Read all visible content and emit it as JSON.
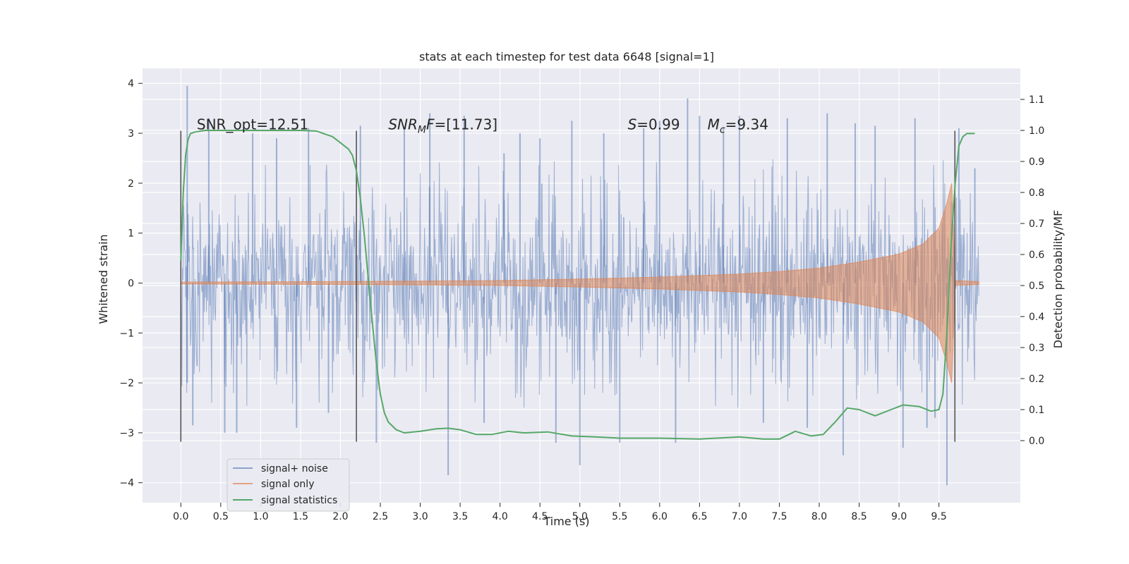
{
  "chart_data": {
    "type": "line",
    "title": "stats at each timestep for test data 6648 [signal=1]",
    "xlabel": "Time (s)",
    "ylabel": "Whitened strain",
    "ylabel_right": "Detection probability/MF",
    "xlim": [
      -0.48,
      10.52
    ],
    "ylim": [
      -4.4,
      4.3
    ],
    "ylim_right": [
      -0.2,
      1.2
    ],
    "x_ticks": [
      0.0,
      0.5,
      1.0,
      1.5,
      2.0,
      2.5,
      3.0,
      3.5,
      4.0,
      4.5,
      5.0,
      5.5,
      6.0,
      6.5,
      7.0,
      7.5,
      8.0,
      8.5,
      9.0,
      9.5
    ],
    "x_tick_labels": [
      "0.0",
      "0.5",
      "1.0",
      "1.5",
      "2.0",
      "2.5",
      "3.0",
      "3.5",
      "4.0",
      "4.5",
      "5.0",
      "5.5",
      "6.0",
      "6.5",
      "7.0",
      "7.5",
      "8.0",
      "8.5",
      "9.0",
      "9.5"
    ],
    "y_ticks": [
      -4,
      -3,
      -2,
      -1,
      0,
      1,
      2,
      3,
      4
    ],
    "y_tick_labels": [
      "−4",
      "−3",
      "−2",
      "−1",
      "0",
      "1",
      "2",
      "3",
      "4"
    ],
    "y_right_ticks": [
      0.0,
      0.1,
      0.2,
      0.3,
      0.4,
      0.5,
      0.6,
      0.7,
      0.8,
      0.9,
      1.0,
      1.1
    ],
    "y_right_tick_labels": [
      "0.0",
      "0.1",
      "0.2",
      "0.3",
      "0.4",
      "0.5",
      "0.6",
      "0.7",
      "0.8",
      "0.9",
      "1.0",
      "1.1"
    ],
    "grid": true,
    "legend_position": "lower-left",
    "colors": {
      "noise": "#4c72b0",
      "signal": "#dd8452",
      "stats": "#55a868",
      "vline": "#555555",
      "background": "#eaeaf2",
      "grid": "#ffffff"
    },
    "series": [
      {
        "name": "signal+ noise",
        "axis": "left",
        "x_range": [
          0.0,
          10.0
        ],
        "typical_band": [
          -1.5,
          1.3
        ],
        "spikes": [
          [
            0.08,
            3.95
          ],
          [
            0.08,
            -2.0
          ],
          [
            0.15,
            -2.85
          ],
          [
            0.35,
            3.3
          ],
          [
            0.55,
            -3.0
          ],
          [
            0.7,
            -3.0
          ],
          [
            0.9,
            3.0
          ],
          [
            1.2,
            2.9
          ],
          [
            1.45,
            -2.9
          ],
          [
            1.6,
            3.1
          ],
          [
            1.85,
            -2.6
          ],
          [
            2.25,
            3.15
          ],
          [
            2.45,
            -3.2
          ],
          [
            2.8,
            3.1
          ],
          [
            3.12,
            3.4
          ],
          [
            3.35,
            -3.85
          ],
          [
            3.55,
            3.35
          ],
          [
            3.8,
            -2.8
          ],
          [
            4.05,
            2.6
          ],
          [
            4.25,
            3.0
          ],
          [
            4.5,
            2.9
          ],
          [
            4.7,
            -3.2
          ],
          [
            4.9,
            3.25
          ],
          [
            5.0,
            -3.65
          ],
          [
            5.3,
            3.0
          ],
          [
            5.5,
            -3.2
          ],
          [
            5.8,
            3.1
          ],
          [
            6.0,
            3.25
          ],
          [
            6.2,
            -3.2
          ],
          [
            6.35,
            3.7
          ],
          [
            6.5,
            3.35
          ],
          [
            6.8,
            3.1
          ],
          [
            7.0,
            3.35
          ],
          [
            7.3,
            -2.8
          ],
          [
            7.6,
            3.3
          ],
          [
            7.85,
            -2.9
          ],
          [
            8.1,
            3.4
          ],
          [
            8.3,
            -3.45
          ],
          [
            8.45,
            3.2
          ],
          [
            8.7,
            3.15
          ],
          [
            9.05,
            -3.3
          ],
          [
            9.2,
            3.3
          ],
          [
            9.35,
            -2.9
          ],
          [
            9.45,
            -2.7
          ],
          [
            9.6,
            -4.05
          ],
          [
            9.75,
            3.1
          ],
          [
            9.95,
            2.3
          ]
        ]
      },
      {
        "name": "signal only",
        "axis": "left",
        "envelope": [
          [
            0.0,
            0.02
          ],
          [
            2.0,
            0.03
          ],
          [
            4.0,
            0.05
          ],
          [
            5.0,
            0.08
          ],
          [
            6.0,
            0.12
          ],
          [
            7.0,
            0.18
          ],
          [
            7.5,
            0.23
          ],
          [
            8.0,
            0.3
          ],
          [
            8.5,
            0.42
          ],
          [
            9.0,
            0.58
          ],
          [
            9.3,
            0.78
          ],
          [
            9.5,
            1.1
          ],
          [
            9.6,
            1.6
          ],
          [
            9.66,
            2.0
          ],
          [
            9.68,
            1.2
          ],
          [
            9.7,
            0.05
          ],
          [
            10.0,
            0.03
          ]
        ]
      },
      {
        "name": "signal statistics",
        "axis": "right",
        "x": [
          0.0,
          0.03,
          0.06,
          0.09,
          0.12,
          0.18,
          0.3,
          0.5,
          1.0,
          1.5,
          1.7,
          1.9,
          2.0,
          2.1,
          2.15,
          2.2,
          2.25,
          2.3,
          2.35,
          2.4,
          2.45,
          2.5,
          2.55,
          2.6,
          2.7,
          2.8,
          3.0,
          3.2,
          3.35,
          3.5,
          3.7,
          3.9,
          4.1,
          4.3,
          4.6,
          4.9,
          5.2,
          5.5,
          6.0,
          6.5,
          7.0,
          7.3,
          7.5,
          7.7,
          7.9,
          8.05,
          8.2,
          8.35,
          8.5,
          8.7,
          8.9,
          9.05,
          9.25,
          9.4,
          9.5,
          9.55,
          9.6,
          9.65,
          9.7,
          9.75,
          9.8,
          9.85,
          9.9,
          9.95
        ],
        "y": [
          0.58,
          0.8,
          0.92,
          0.97,
          0.99,
          0.995,
          1.0,
          1.0,
          1.0,
          1.0,
          0.998,
          0.98,
          0.96,
          0.94,
          0.92,
          0.87,
          0.78,
          0.66,
          0.52,
          0.38,
          0.25,
          0.15,
          0.09,
          0.06,
          0.035,
          0.025,
          0.03,
          0.038,
          0.04,
          0.035,
          0.02,
          0.02,
          0.03,
          0.025,
          0.028,
          0.015,
          0.012,
          0.008,
          0.008,
          0.005,
          0.012,
          0.005,
          0.005,
          0.03,
          0.015,
          0.02,
          0.06,
          0.105,
          0.1,
          0.08,
          0.1,
          0.115,
          0.11,
          0.095,
          0.1,
          0.15,
          0.35,
          0.62,
          0.82,
          0.95,
          0.98,
          0.99,
          0.99,
          0.99
        ]
      }
    ],
    "vlines": [
      0.0,
      2.2,
      9.7
    ],
    "annotations": [
      {
        "text": "SNR_opt=12.51",
        "x": 0.2,
        "y": 3.08
      },
      {
        "text": "SNR_MF=[11.73]",
        "x": 2.6,
        "y": 3.08
      },
      {
        "text": "S=0.99",
        "x": 5.6,
        "y": 3.08
      },
      {
        "text": "M_c=9.34",
        "x": 6.6,
        "y": 3.08
      }
    ]
  }
}
